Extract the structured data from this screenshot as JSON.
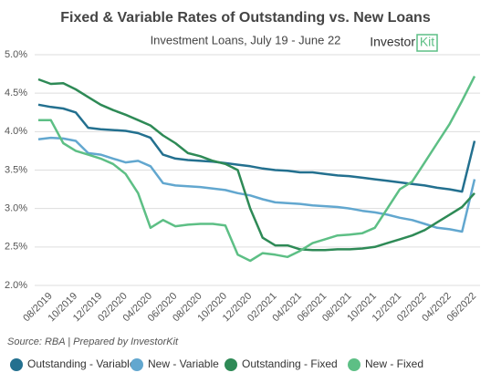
{
  "chart_data": {
    "type": "line",
    "title": "Fixed & Variable Rates of Outstanding vs. New Loans",
    "subtitle": "Investment Loans, July 19 - June 22",
    "logo": {
      "text": "Investor",
      "highlight": "Kit"
    },
    "source": "Source: RBA | Prepared by InvestorKit",
    "categories": [
      null,
      "08/2019",
      null,
      "10/2019",
      null,
      "12/2019",
      null,
      "02/2020",
      null,
      "04/2020",
      null,
      "06/2020",
      null,
      "08/2020",
      null,
      "10/2020",
      null,
      "12/2020",
      null,
      "02/2021",
      null,
      "04/2021",
      null,
      "06/2021",
      null,
      "08/2021",
      null,
      "10/2021",
      null,
      "12/2021",
      null,
      "02/2022",
      null,
      "04/2022",
      null,
      "06/2022"
    ],
    "series": [
      {
        "name": "Outstanding - Variable",
        "color": "#23708f",
        "values": [
          4.35,
          4.32,
          4.3,
          4.25,
          4.05,
          4.03,
          4.02,
          4.01,
          3.98,
          3.92,
          3.7,
          3.65,
          3.63,
          3.62,
          3.61,
          3.59,
          3.57,
          3.55,
          3.52,
          3.5,
          3.49,
          3.47,
          3.47,
          3.45,
          3.43,
          3.42,
          3.4,
          3.38,
          3.36,
          3.34,
          3.32,
          3.3,
          3.27,
          3.25,
          3.22,
          3.88
        ]
      },
      {
        "name": "New - Variable",
        "color": "#62a7cf",
        "values": [
          3.9,
          3.92,
          3.91,
          3.88,
          3.72,
          3.7,
          3.65,
          3.6,
          3.62,
          3.55,
          3.33,
          3.3,
          3.29,
          3.28,
          3.26,
          3.24,
          3.2,
          3.17,
          3.12,
          3.08,
          3.07,
          3.06,
          3.04,
          3.03,
          3.02,
          3.0,
          2.97,
          2.95,
          2.92,
          2.88,
          2.85,
          2.8,
          2.75,
          2.73,
          2.7,
          3.38
        ]
      },
      {
        "name": "Outstanding - Fixed",
        "color": "#2e8a56",
        "values": [
          4.68,
          4.62,
          4.63,
          4.55,
          4.45,
          4.35,
          4.28,
          4.22,
          4.15,
          4.08,
          3.95,
          3.85,
          3.72,
          3.68,
          3.62,
          3.58,
          3.5,
          3.0,
          2.62,
          2.52,
          2.52,
          2.47,
          2.46,
          2.46,
          2.47,
          2.47,
          2.48,
          2.5,
          2.55,
          2.6,
          2.65,
          2.72,
          2.82,
          2.92,
          3.02,
          3.2
        ]
      },
      {
        "name": "New - Fixed",
        "color": "#5dbf85",
        "values": [
          4.15,
          4.15,
          3.85,
          3.75,
          3.7,
          3.65,
          3.58,
          3.45,
          3.2,
          2.75,
          2.85,
          2.77,
          2.79,
          2.8,
          2.8,
          2.78,
          2.4,
          2.32,
          2.42,
          2.4,
          2.37,
          2.45,
          2.55,
          2.6,
          2.65,
          2.66,
          2.68,
          2.75,
          3.0,
          3.25,
          3.35,
          3.6,
          3.85,
          4.1,
          4.4,
          4.72
        ]
      }
    ],
    "ylim": [
      2.0,
      5.0
    ],
    "yticks": [
      {
        "value": 2.0,
        "label": "2.0%"
      },
      {
        "value": 2.5,
        "label": "2.5%"
      },
      {
        "value": 3.0,
        "label": "3.0%"
      },
      {
        "value": 3.5,
        "label": "3.5%"
      },
      {
        "value": 4.0,
        "label": "4.0%"
      },
      {
        "value": 4.5,
        "label": "4.5%"
      },
      {
        "value": 5.0,
        "label": "5.0%"
      }
    ],
    "grid": true,
    "legend": "bottom"
  }
}
